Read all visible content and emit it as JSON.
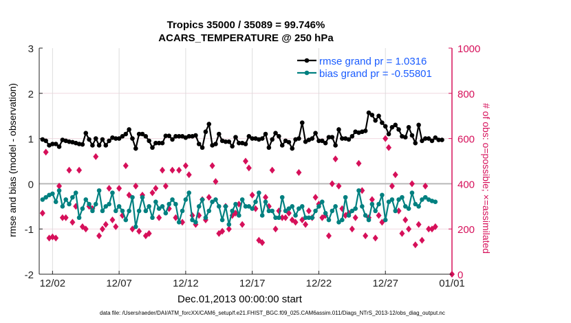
{
  "chart_data": {
    "type": "line",
    "title": "Tropics 35000 / 35089 = 99.746%",
    "subtitle": "ACARS_TEMPERATURE @ 250 hPa",
    "xlabel": "Dec.01,2013 00:00:00 start",
    "ylabel": "rmse and bias (model - observation)",
    "ylabel_right": "# of obs: o=possible; ×=assimilated",
    "footer": "data file: /Users/raeder/DAI/ATM_forcXX/CAM6_setup/f.e21.FHIST_BGC.f09_025.CAM6assim.011/Diags_NTrS_2013-12/obs_diag_output.nc",
    "xlim_days": [
      0,
      31
    ],
    "x_ticks": [
      {
        "day": 1,
        "label": "12/02"
      },
      {
        "day": 6,
        "label": "12/07"
      },
      {
        "day": 11,
        "label": "12/12"
      },
      {
        "day": 16,
        "label": "12/17"
      },
      {
        "day": 21,
        "label": "12/22"
      },
      {
        "day": 26,
        "label": "12/27"
      },
      {
        "day": 31,
        "label": "01/01"
      }
    ],
    "ylim": [
      -2,
      3
    ],
    "y_ticks": [
      "3",
      "2",
      "1",
      "0",
      "-1",
      "-2"
    ],
    "ylim_right": [
      0,
      1000
    ],
    "y_ticks_right": [
      "1000",
      "800",
      "600",
      "400",
      "200",
      "0"
    ],
    "legend": {
      "placement": "top-right",
      "entries": [
        "rmse grand pr = 1.0316",
        "bias grand pr = -0.55801"
      ]
    },
    "start_day": 0.25,
    "step_days": 0.25,
    "colors": {
      "rmse": "#000000",
      "bias": "#008080",
      "obs": "#d6105a"
    },
    "series": [
      {
        "name": "rmse",
        "values": [
          0.98,
          0.95,
          0.85,
          0.88,
          0.88,
          0.82,
          0.97,
          0.95,
          0.93,
          0.92,
          0.9,
          0.88,
          0.87,
          1.12,
          0.98,
          0.85,
          1.0,
          0.85,
          0.98,
          0.85,
          0.95,
          1.02,
          1.0,
          1.0,
          1.05,
          1.1,
          1.2,
          1.0,
          0.78,
          1.1,
          1.1,
          1.05,
          0.95,
          0.8,
          0.9,
          0.9,
          0.9,
          1.06,
          1.06,
          0.98,
          1.05,
          1.05,
          1.05,
          1.02,
          1.05,
          1.05,
          1.07,
          0.88,
          0.8,
          1.15,
          1.32,
          0.85,
          0.88,
          1.1,
          0.95,
          0.93,
          0.93,
          0.83,
          1.03,
          0.9,
          0.9,
          0.88,
          1.05,
          1.0,
          1.0,
          0.98,
          1.0,
          1.1,
          0.8,
          0.98,
          1.12,
          1.05,
          0.85,
          0.95,
          0.92,
          0.78,
          0.98,
          1.0,
          1.35,
          0.93,
          0.97,
          1.0,
          1.12,
          0.95,
          0.95,
          0.9,
          1.03,
          1.03,
          0.85,
          1.2,
          1.0,
          1.0,
          0.98,
          1.05,
          1.15,
          1.13,
          1.15,
          1.17,
          1.57,
          1.52,
          1.4,
          1.5,
          1.35,
          1.27,
          1.1,
          1.25,
          1.3,
          1.2,
          1.05,
          1.03,
          1.25,
          1.07,
          0.9,
          1.3,
          0.95,
          1.0,
          1.0,
          0.95,
          1.02,
          0.97,
          0.97
        ]
      },
      {
        "name": "bias",
        "values": [
          -0.35,
          -0.3,
          -0.25,
          -0.22,
          -0.4,
          -0.15,
          -0.5,
          -0.35,
          -0.45,
          -0.3,
          -0.2,
          -0.75,
          -0.55,
          -0.35,
          -0.45,
          -0.6,
          -0.45,
          -0.15,
          -0.6,
          -0.5,
          -0.45,
          -0.2,
          -0.6,
          -0.5,
          -0.6,
          -0.8,
          -0.6,
          -0.3,
          -0.95,
          -0.6,
          -0.3,
          -0.6,
          -0.5,
          -0.75,
          -0.4,
          -0.55,
          -0.5,
          -0.65,
          -0.45,
          -0.35,
          -0.45,
          -0.85,
          -0.6,
          -0.35,
          -0.2,
          -0.8,
          -0.85,
          -0.5,
          -0.35,
          -0.75,
          -0.6,
          -0.4,
          -0.35,
          -0.5,
          -0.8,
          -0.5,
          -0.9,
          -0.6,
          -0.45,
          -0.7,
          -0.35,
          -0.5,
          -0.5,
          -0.55,
          -0.4,
          -0.2,
          -0.7,
          -0.4,
          -0.6,
          -0.6,
          -0.75,
          -0.75,
          -0.3,
          -0.6,
          -0.55,
          -0.5,
          -0.7,
          -0.55,
          -0.5,
          -0.75,
          -0.75,
          -0.75,
          -0.6,
          -0.5,
          -0.4,
          -0.65,
          -0.8,
          -0.6,
          -0.5,
          -0.85,
          -0.8,
          -0.3,
          -0.7,
          -0.6,
          -0.55,
          -0.15,
          -0.5,
          -0.7,
          -0.8,
          -0.45,
          -0.6,
          -0.45,
          -0.25,
          -0.8,
          -0.4,
          -0.35,
          -0.6,
          -0.35,
          -0.3,
          -0.5,
          -0.55,
          -0.2,
          -0.45,
          -0.5,
          -0.35,
          -0.3,
          -0.35,
          -0.38,
          -0.4
        ]
      },
      {
        "name": "obs_count",
        "values": [
          270,
          540,
          160,
          165,
          160,
          390,
          250,
          250,
          460,
          230,
          300,
          460,
          210,
          200,
          300,
          290,
          520,
          170,
          200,
          220,
          380,
          240,
          210,
          380,
          260,
          480,
          350,
          200,
          390,
          190,
          350,
          170,
          180,
          360,
          380,
          250,
          460,
          390,
          290,
          460,
          250,
          460,
          230,
          480,
          440,
          260,
          220,
          260,
          330,
          240,
          340,
          480,
          410,
          180,
          190,
          300,
          200,
          260,
          270,
          310,
          220,
          500,
          470,
          350,
          290,
          150,
          140,
          340,
          300,
          460,
          200,
          280,
          250,
          250,
          270,
          240,
          230,
          450,
          240,
          220,
          280,
          250,
          340,
          310,
          250,
          260,
          170,
          400,
          510,
          390,
          290,
          260,
          270,
          200,
          250,
          490,
          370,
          170,
          250,
          330,
          160,
          260,
          230,
          600,
          560,
          390,
          440,
          280,
          180,
          240,
          200,
          400,
          130,
          220,
          150,
          390,
          200,
          200,
          210,
          0
        ]
      }
    ]
  }
}
